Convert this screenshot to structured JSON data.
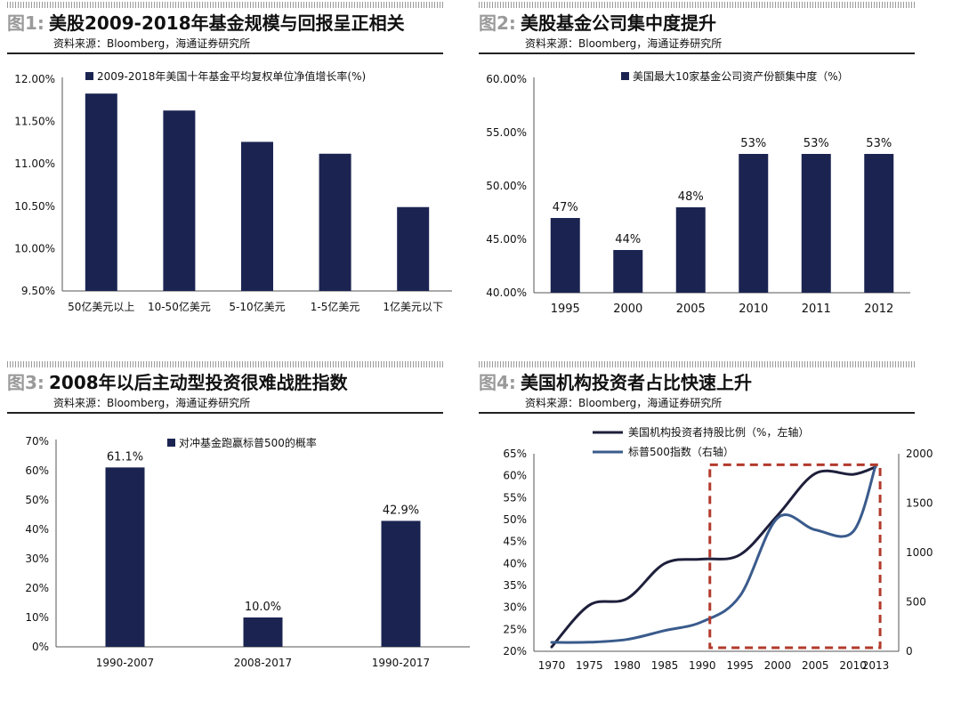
{
  "colors": {
    "bar": "#1b2451",
    "line_dark": "#1e1f3b",
    "line_blue": "#3a5b8c",
    "box": "#b23a2c"
  },
  "panels": [
    {
      "fig": "图1:",
      "title": "美股2009-2018年基金规模与回报呈正相关",
      "source": "资料来源：Bloomberg，海通证券研究所"
    },
    {
      "fig": "图2:",
      "title": "美股基金公司集中度提升",
      "source": "资料来源：Bloomberg，海通证券研究所"
    },
    {
      "fig": "图3:",
      "title": "2008年以后主动型投资很难战胜指数",
      "source": "资料来源：Bloomberg，海通证券研究所"
    },
    {
      "fig": "图4:",
      "title": "美国机构投资者占比快速上升",
      "source": "资料来源：Bloomberg，海通证券研究所"
    }
  ],
  "chart_data": [
    {
      "type": "bar",
      "categories": [
        "50亿美元以上",
        "10-50亿美元",
        "5-10亿美元",
        "1-5亿美元",
        "1亿美元以下"
      ],
      "series": [
        {
          "name": "2009-2018年美国十年基金平均复权单位净值增长率(%)",
          "values": [
            11.83,
            11.63,
            11.26,
            11.12,
            10.49
          ]
        }
      ],
      "ylim": [
        9.5,
        12.0
      ],
      "yticks": [
        "9.50%",
        "10.00%",
        "10.50%",
        "11.00%",
        "11.50%",
        "12.00%"
      ],
      "ytick_values": [
        9.5,
        10.0,
        10.5,
        11.0,
        11.5,
        12.0
      ],
      "data_labels": [],
      "legend": "top"
    },
    {
      "type": "bar",
      "categories": [
        "1995",
        "2000",
        "2005",
        "2010",
        "2011",
        "2012"
      ],
      "series": [
        {
          "name": "美国最大10家基金公司资产份额集中度（%）",
          "values": [
            47,
            44,
            48,
            53,
            53,
            53
          ]
        }
      ],
      "ylim": [
        40,
        60
      ],
      "yticks": [
        "40.00%",
        "45.00%",
        "50.00%",
        "55.00%",
        "60.00%"
      ],
      "ytick_values": [
        40,
        45,
        50,
        55,
        60
      ],
      "data_labels": [
        "47%",
        "44%",
        "48%",
        "53%",
        "53%",
        "53%"
      ],
      "legend": "top"
    },
    {
      "type": "bar",
      "categories": [
        "1990-2007",
        "2008-2017",
        "1990-2017"
      ],
      "series": [
        {
          "name": "对冲基金跑赢标普500的概率",
          "values": [
            61.1,
            10.0,
            42.9
          ]
        }
      ],
      "ylim": [
        0,
        70
      ],
      "yticks": [
        "0%",
        "10%",
        "20%",
        "30%",
        "40%",
        "50%",
        "60%",
        "70%"
      ],
      "ytick_values": [
        0,
        10,
        20,
        30,
        40,
        50,
        60,
        70
      ],
      "data_labels": [
        "61.1%",
        "10.0%",
        "42.9%"
      ],
      "legend": "top"
    },
    {
      "type": "line",
      "x": [
        1970,
        1975,
        1980,
        1985,
        1990,
        1995,
        2000,
        2005,
        2010,
        2013
      ],
      "xticks": [
        "1970",
        "1975",
        "1980",
        "1985",
        "1990",
        "1995",
        "2000",
        "2005",
        "2010",
        "2013"
      ],
      "series": [
        {
          "name": "美国机构投资者持股比例（%，左轴）",
          "axis": "left",
          "values": [
            21,
            30.5,
            32,
            40,
            41,
            42,
            51,
            60.5,
            60.3,
            62
          ]
        },
        {
          "name": "标普500指数（右轴）",
          "axis": "right",
          "values": [
            90,
            92,
            120,
            210,
            300,
            560,
            1350,
            1230,
            1210,
            1880
          ]
        }
      ],
      "ylim_left": [
        20,
        65
      ],
      "yticks_left": [
        "20%",
        "25%",
        "30%",
        "35%",
        "40%",
        "45%",
        "50%",
        "55%",
        "60%",
        "65%"
      ],
      "ytick_left_values": [
        20,
        25,
        30,
        35,
        40,
        45,
        50,
        55,
        60,
        65
      ],
      "ylim_right": [
        0,
        2000
      ],
      "yticks_right": [
        "0",
        "500",
        "1000",
        "1500",
        "2000"
      ],
      "ytick_right_values": [
        0,
        500,
        1000,
        1500,
        2000
      ],
      "highlight_range": {
        "x": [
          1991,
          2013.6
        ],
        "left_y": [
          20.8,
          62.5
        ]
      },
      "legend": "top-left"
    }
  ]
}
